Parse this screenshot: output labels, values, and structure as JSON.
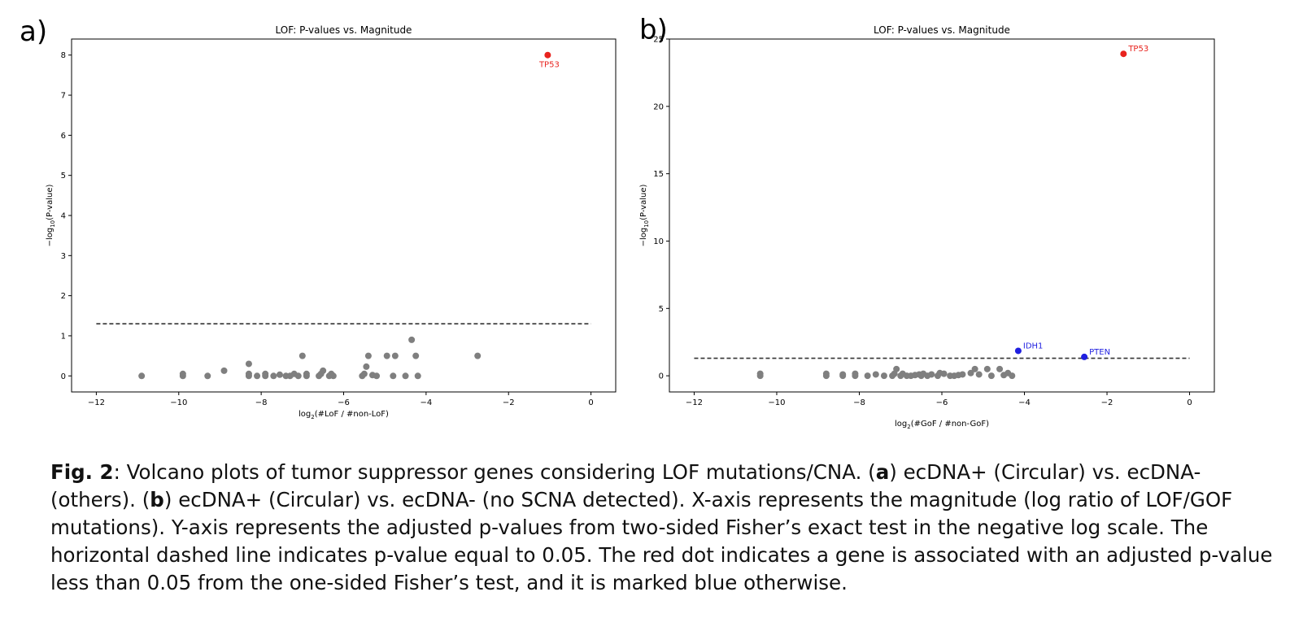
{
  "panel_labels": {
    "a": "a)",
    "b": "b)"
  },
  "chart_data": [
    {
      "panel": "a",
      "type": "scatter",
      "title": "LOF: P-values vs. Magnitude",
      "xlabel_main": "log",
      "xlabel_sub": "2",
      "xlabel_rest": "(#LoF / #non-LoF)",
      "ylabel_main": "−log",
      "ylabel_sub": "10",
      "ylabel_rest": "(P-value)",
      "xlim": [
        -12.6,
        0.6
      ],
      "ylim": [
        -0.4,
        8.4
      ],
      "xticks": [
        -12,
        -10,
        -8,
        -6,
        -4,
        -2,
        0
      ],
      "xtick_labels": [
        "−12",
        "−10",
        "−8",
        "−6",
        "−4",
        "−2",
        "0"
      ],
      "yticks": [
        0,
        1,
        2,
        3,
        4,
        5,
        6,
        7,
        8
      ],
      "ytick_labels": [
        "0",
        "1",
        "2",
        "3",
        "4",
        "5",
        "6",
        "7",
        "8"
      ],
      "threshold": {
        "y": 1.3,
        "x_range": [
          -12,
          0
        ],
        "style": "dashed"
      },
      "grid": false,
      "gray_color": "#7f7f7f",
      "gray_points": [
        [
          -10.9,
          0.0
        ],
        [
          -9.9,
          0.0
        ],
        [
          -9.9,
          0.05
        ],
        [
          -9.3,
          0.0
        ],
        [
          -8.9,
          0.13
        ],
        [
          -8.3,
          0.0
        ],
        [
          -8.3,
          0.05
        ],
        [
          -8.3,
          0.3
        ],
        [
          -8.1,
          0.0
        ],
        [
          -7.9,
          0.0
        ],
        [
          -7.9,
          0.05
        ],
        [
          -7.7,
          0.0
        ],
        [
          -7.55,
          0.03
        ],
        [
          -7.4,
          0.0
        ],
        [
          -7.3,
          0.0
        ],
        [
          -7.2,
          0.05
        ],
        [
          -7.1,
          0.0
        ],
        [
          -7.0,
          0.5
        ],
        [
          -6.9,
          0.0
        ],
        [
          -6.9,
          0.05
        ],
        [
          -6.6,
          0.0
        ],
        [
          -6.55,
          0.05
        ],
        [
          -6.5,
          0.13
        ],
        [
          -6.35,
          0.0
        ],
        [
          -6.3,
          0.05
        ],
        [
          -6.25,
          0.0
        ],
        [
          -5.55,
          0.0
        ],
        [
          -5.5,
          0.05
        ],
        [
          -5.45,
          0.23
        ],
        [
          -5.4,
          0.5
        ],
        [
          -5.3,
          0.02
        ],
        [
          -5.2,
          0.0
        ],
        [
          -4.95,
          0.5
        ],
        [
          -4.8,
          0.0
        ],
        [
          -4.75,
          0.5
        ],
        [
          -4.5,
          0.0
        ],
        [
          -4.35,
          0.9
        ],
        [
          -4.25,
          0.5
        ],
        [
          -4.2,
          0.0
        ],
        [
          -2.75,
          0.5
        ]
      ],
      "highlighted": [
        {
          "name": "TP53",
          "x": -1.05,
          "y": 8.0,
          "color": "#e8231e",
          "label_pos": "below"
        }
      ]
    },
    {
      "panel": "b",
      "type": "scatter",
      "title": "LOF: P-values vs. Magnitude",
      "xlabel_main": "log",
      "xlabel_sub": "2",
      "xlabel_rest": "(#GoF / #non-GoF)",
      "ylabel_main": "−log",
      "ylabel_sub": "10",
      "ylabel_rest": "(P-value)",
      "xlim": [
        -12.6,
        0.6
      ],
      "ylim": [
        -1.2,
        25.0
      ],
      "xticks": [
        -12,
        -10,
        -8,
        -6,
        -4,
        -2,
        0
      ],
      "xtick_labels": [
        "−12",
        "−10",
        "−8",
        "−6",
        "−4",
        "−2",
        "0"
      ],
      "yticks": [
        0,
        5,
        10,
        15,
        20,
        25
      ],
      "ytick_labels": [
        "0",
        "5",
        "10",
        "15",
        "20",
        "25"
      ],
      "threshold": {
        "y": 1.3,
        "x_range": [
          -12,
          0
        ],
        "style": "dashed"
      },
      "grid": false,
      "gray_color": "#7f7f7f",
      "gray_points": [
        [
          -10.4,
          0.0
        ],
        [
          -10.4,
          0.15
        ],
        [
          -8.8,
          0.0
        ],
        [
          -8.8,
          0.15
        ],
        [
          -8.4,
          0.0
        ],
        [
          -8.4,
          0.1
        ],
        [
          -8.1,
          0.0
        ],
        [
          -8.1,
          0.15
        ],
        [
          -7.8,
          0.0
        ],
        [
          -7.6,
          0.1
        ],
        [
          -7.4,
          0.0
        ],
        [
          -7.2,
          0.0
        ],
        [
          -7.15,
          0.15
        ],
        [
          -7.1,
          0.5
        ],
        [
          -7.0,
          0.0
        ],
        [
          -6.95,
          0.15
        ],
        [
          -6.85,
          0.0
        ],
        [
          -6.75,
          0.0
        ],
        [
          -6.65,
          0.05
        ],
        [
          -6.55,
          0.1
        ],
        [
          -6.5,
          0.0
        ],
        [
          -6.45,
          0.15
        ],
        [
          -6.35,
          0.0
        ],
        [
          -6.25,
          0.1
        ],
        [
          -6.1,
          0.0
        ],
        [
          -6.05,
          0.2
        ],
        [
          -5.95,
          0.15
        ],
        [
          -5.8,
          0.0
        ],
        [
          -5.7,
          0.0
        ],
        [
          -5.6,
          0.05
        ],
        [
          -5.5,
          0.1
        ],
        [
          -5.3,
          0.2
        ],
        [
          -5.2,
          0.5
        ],
        [
          -5.1,
          0.1
        ],
        [
          -4.9,
          0.5
        ],
        [
          -4.8,
          0.0
        ],
        [
          -4.6,
          0.5
        ],
        [
          -4.5,
          0.05
        ],
        [
          -4.4,
          0.2
        ],
        [
          -4.3,
          0.0
        ]
      ],
      "highlighted": [
        {
          "name": "TP53",
          "x": -1.6,
          "y": 23.9,
          "color": "#e8231e",
          "label_pos": "right"
        },
        {
          "name": "IDH1",
          "x": -4.15,
          "y": 1.85,
          "color": "#1f1fe0",
          "label_pos": "right"
        },
        {
          "name": "PTEN",
          "x": -2.55,
          "y": 1.4,
          "color": "#1f1fe0",
          "label_pos": "right"
        }
      ]
    }
  ],
  "caption": {
    "fig_label": "Fig. 2",
    "part1": ": Volcano plots of tumor suppressor genes considering LOF mutations/CNA. (",
    "a_letter": "a",
    "part2": ") ecDNA+ (Circular) vs. ecDNA- (others). (",
    "b_letter": "b",
    "part3": ") ecDNA+ (Circular) vs. ecDNA- (no SCNA detected). X-axis represents the magnitude (log ratio of LOF/GOF mutations). Y-axis represents the adjusted p-values from two-sided Fisher’s exact test in the negative log scale. The horizontal dashed line indicates p-value equal to 0.05. The red dot indicates a gene is associated with an adjusted p-value less than 0.05 from the one-sided Fisher’s test, and it is marked blue otherwise."
  }
}
